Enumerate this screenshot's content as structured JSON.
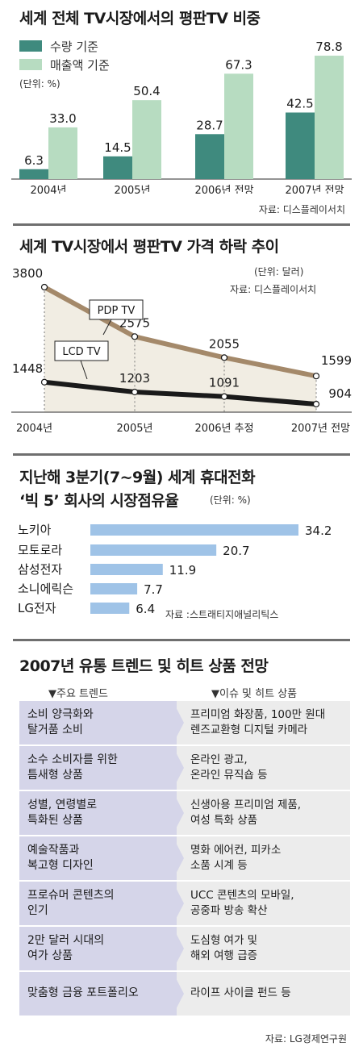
{
  "chart_data": [
    {
      "type": "bar",
      "title": "세계 전체 TV시장에서의 평판TV 비중",
      "unit": "(단위: %)",
      "source": "자료: 디스플레이서치",
      "categories": [
        "2004년",
        "2005년",
        "2006년 전망",
        "2007년 전망"
      ],
      "series": [
        {
          "name": "수량 기준",
          "values": [
            6.3,
            14.5,
            28.7,
            42.5
          ],
          "labels": [
            "6.3",
            "14.5",
            "28.7",
            "42.5"
          ],
          "color": "#3f8a7e"
        },
        {
          "name": "매출액 기준",
          "values": [
            33.0,
            50.4,
            67.3,
            78.8
          ],
          "labels": [
            "33.0",
            "50.4",
            "67.3",
            "78.8"
          ],
          "color": "#b7dcc1"
        }
      ],
      "ylim": [
        0,
        85
      ]
    },
    {
      "type": "line",
      "title": "세계 TV시장에서 평판TV 가격 하락 추이",
      "unit": "(단위: 달러)",
      "source": "자료: 디스플레이서치",
      "categories": [
        "2004년",
        "2005년",
        "2006년 추정",
        "2007년 전망"
      ],
      "series": [
        {
          "name": "PDP TV",
          "values": [
            3800,
            2575,
            2055,
            1599
          ],
          "labels": [
            "3800",
            "2575",
            "2055",
            "1599"
          ],
          "color": "#a4896a"
        },
        {
          "name": "LCD TV",
          "values": [
            1448,
            1203,
            1091,
            904
          ],
          "labels": [
            "1448",
            "1203",
            "1091",
            "904"
          ],
          "color": "#1a1a1a"
        }
      ],
      "ylim": [
        700,
        3900
      ]
    },
    {
      "type": "bar",
      "orientation": "horizontal",
      "title_line1": "지난해 3분기(7~9월) 세계 휴대전화",
      "title_line2": "‘빅 5’ 회사의 시장점유율",
      "unit": "(단위: %)",
      "source": "자료 :스트래티지애널리틱스",
      "categories": [
        "노키아",
        "모토로라",
        "삼성전자",
        "소니에릭슨",
        "LG전자"
      ],
      "values": [
        34.2,
        20.7,
        11.9,
        7.7,
        6.4
      ],
      "labels": [
        "34.2",
        "20.7",
        "11.9",
        "7.7",
        "6.4"
      ],
      "color": "#9fc3e7",
      "xlim": [
        0,
        34.2
      ]
    }
  ],
  "trends": {
    "title": "2007년 유통 트렌드 및 히트 상품 전망",
    "left_header": "▼주요 트렌드",
    "right_header": "▼이슈 및 히트 상품",
    "rows": [
      {
        "trend": [
          "소비 양극화와",
          "탈거품 소비"
        ],
        "product": [
          "프리미엄 화장품, 100만 원대",
          "렌즈교환형 디지털 카메라"
        ]
      },
      {
        "trend": [
          "소수 소비자를 위한",
          "틈새형 상품"
        ],
        "product": [
          "온라인 광고,",
          "온라인 뮤직숍 등"
        ]
      },
      {
        "trend": [
          "성별, 연령별로",
          "특화된 상품"
        ],
        "product": [
          "신생아용 프리미엄 제품,",
          "여성 특화 상품"
        ]
      },
      {
        "trend": [
          "예술작품과",
          "복고형 디자인"
        ],
        "product": [
          "명화 에어컨, 피카소",
          "소품 시계 등"
        ]
      },
      {
        "trend": [
          "프로슈머 콘텐츠의",
          "인기"
        ],
        "product": [
          "UCC 콘텐츠의 모바일,",
          "공중파 방송 확산"
        ]
      },
      {
        "trend": [
          "2만 달러 시대의",
          "여가 상품"
        ],
        "product": [
          "도심형 여가 및",
          "해외 여행 급증"
        ]
      },
      {
        "trend": [
          "맞춤형 금융 포트폴리오"
        ],
        "product": [
          "라이프 사이클 펀드 등"
        ]
      }
    ],
    "source": "자료: LG경제연구원"
  }
}
